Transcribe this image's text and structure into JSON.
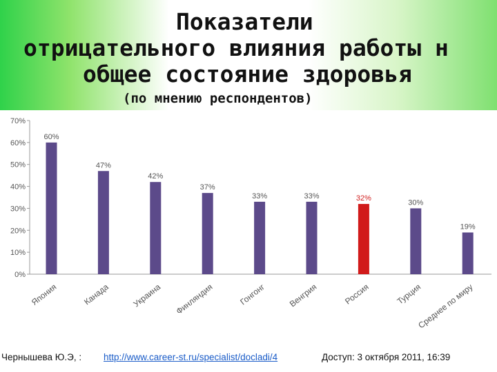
{
  "title": {
    "line1": "Показатели",
    "line2": "отрицательного влияния работы н",
    "line3": "общее состояние здоровья",
    "subtitle": "(по мнению респондентов)"
  },
  "footer": {
    "author": "Чернышева Ю.Э, : ",
    "link": "http://www.career-st.ru/specialist/docladi/4",
    "access": "Доступ: 3 октября 2011, 16:39"
  },
  "colors": {
    "bar": "#5c4a8a",
    "highlight": "#d11a1a",
    "highlight_label": "#d12020"
  },
  "chart_data": {
    "type": "bar",
    "categories": [
      "Япония",
      "Канада",
      "Украина",
      "Финляндия",
      "Гонгонг",
      "Венгрия",
      "Россия",
      "Турция",
      "Среднее по миру"
    ],
    "values": [
      60,
      47,
      42,
      37,
      33,
      33,
      32,
      30,
      19
    ],
    "value_labels": [
      "60%",
      "47%",
      "42%",
      "37%",
      "33%",
      "33%",
      "32%",
      "30%",
      "19%"
    ],
    "highlight_index": 6,
    "ylim": [
      0,
      70
    ],
    "yticks": [
      0,
      10,
      20,
      30,
      40,
      50,
      60,
      70
    ],
    "ytick_labels": [
      "0%",
      "10%",
      "20%",
      "30%",
      "40%",
      "50%",
      "60%",
      "70%"
    ],
    "grid": false
  }
}
